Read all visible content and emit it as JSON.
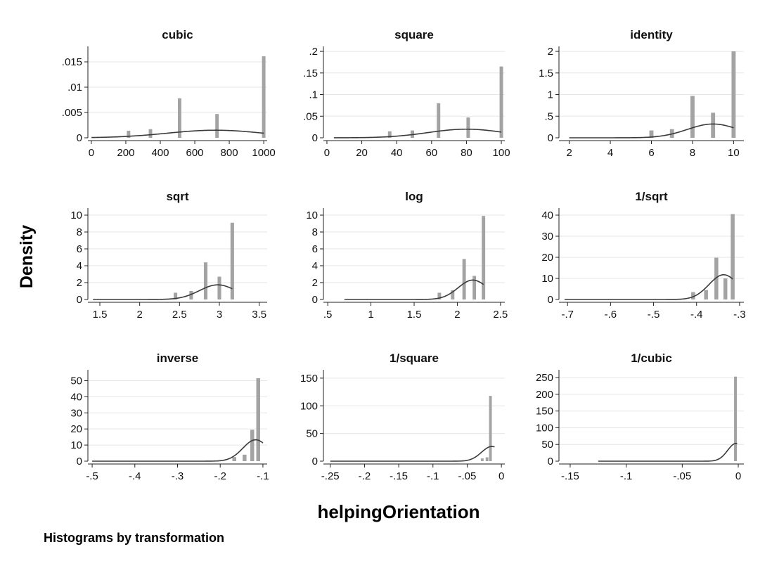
{
  "colors": {
    "bar": "#a3a3a3",
    "curve": "#3a3a3a",
    "grid": "#e6e6e6",
    "axis": "#222222"
  },
  "chart_data": {
    "type": "bar",
    "layout": "3x3 small multiples",
    "ylabel": "Density",
    "xlabel": "helpingOrientation",
    "note": "Histograms by transformation",
    "grid": true,
    "overlay": "normal density curve",
    "panels": [
      {
        "title": "cubic",
        "xlim": [
          -20,
          1020
        ],
        "ylim": [
          0,
          0.0175
        ],
        "xticks": [
          0,
          200,
          400,
          600,
          800,
          1000
        ],
        "xtick_labels": [
          "0",
          "200",
          "400",
          "600",
          "800",
          "1000"
        ],
        "yticks": [
          0,
          0.005,
          0.01,
          0.015
        ],
        "ytick_labels": [
          "0",
          ".005",
          ".01",
          ".015"
        ],
        "bar_width": 20,
        "bars": [
          {
            "x": 216,
            "y": 0.0014
          },
          {
            "x": 343,
            "y": 0.0017
          },
          {
            "x": 512,
            "y": 0.0078
          },
          {
            "x": 729,
            "y": 0.0047
          },
          {
            "x": 1000,
            "y": 0.0161
          }
        ],
        "curve": {
          "mean": 720,
          "sd": 280,
          "scale": 1.05,
          "range": [
            1,
            1000
          ]
        }
      },
      {
        "title": "square",
        "xlim": [
          -2,
          102
        ],
        "ylim": [
          0,
          0.205
        ],
        "xticks": [
          0,
          20,
          40,
          60,
          80,
          100
        ],
        "xtick_labels": [
          "0",
          "20",
          "40",
          "60",
          "80",
          "100"
        ],
        "yticks": [
          0,
          0.05,
          0.1,
          0.15,
          0.2
        ],
        "yticks_labels_note": "",
        "ytick_labels": [
          "0",
          ".05",
          ".1",
          ".15",
          ".2"
        ],
        "bar_width": 2,
        "bars": [
          {
            "x": 36,
            "y": 0.015
          },
          {
            "x": 49,
            "y": 0.017
          },
          {
            "x": 64,
            "y": 0.08
          },
          {
            "x": 81,
            "y": 0.047
          },
          {
            "x": 100,
            "y": 0.165
          }
        ],
        "curve": {
          "mean": 80,
          "sd": 22,
          "scale": 1.1,
          "range": [
            4,
            100
          ]
        }
      },
      {
        "title": "identity",
        "xlim": [
          1.5,
          10.5
        ],
        "ylim": [
          0,
          2.05
        ],
        "xticks": [
          2,
          4,
          6,
          8,
          10
        ],
        "xtick_labels": [
          "2",
          "4",
          "6",
          "8",
          "10"
        ],
        "yticks": [
          0,
          0.5,
          1,
          1.5,
          2
        ],
        "ytick_labels": [
          "0",
          ".5",
          "1",
          "1.5",
          "2"
        ],
        "bar_width": 0.2,
        "bars": [
          {
            "x": 6,
            "y": 0.17
          },
          {
            "x": 7,
            "y": 0.2
          },
          {
            "x": 8,
            "y": 0.97
          },
          {
            "x": 9,
            "y": 0.58
          },
          {
            "x": 10,
            "y": 2.0
          }
        ],
        "curve": {
          "mean": 9,
          "sd": 1.25,
          "scale": 1.0,
          "range": [
            2,
            10
          ]
        }
      },
      {
        "title": "sqrt",
        "xlim": [
          1.35,
          3.6
        ],
        "ylim": [
          0,
          10.5
        ],
        "xticks": [
          1.5,
          2,
          2.5,
          3,
          3.5
        ],
        "xtick_labels": [
          "1.5",
          "2",
          "2.5",
          "3",
          "3.5"
        ],
        "yticks": [
          0,
          2,
          4,
          6,
          8,
          10
        ],
        "ytick_labels": [
          "0",
          "2",
          "4",
          "6",
          "8",
          "10"
        ],
        "bar_width": 0.045,
        "bars": [
          {
            "x": 2.449,
            "y": 0.8
          },
          {
            "x": 2.646,
            "y": 1.0
          },
          {
            "x": 2.828,
            "y": 4.4
          },
          {
            "x": 3.0,
            "y": 2.7
          },
          {
            "x": 3.162,
            "y": 9.1
          }
        ],
        "curve": {
          "mean": 2.98,
          "sd": 0.23,
          "scale": 1.0,
          "range": [
            1.414,
            3.162
          ]
        }
      },
      {
        "title": "log",
        "xlim": [
          0.45,
          2.55
        ],
        "ylim": [
          0,
          10.5
        ],
        "xticks": [
          0.5,
          1,
          1.5,
          2,
          2.5
        ],
        "xtick_labels": [
          ".5",
          "1",
          "1.5",
          "2",
          "2.5"
        ],
        "yticks": [
          0,
          2,
          4,
          6,
          8,
          10
        ],
        "ytick_labels": [
          "0",
          "2",
          "4",
          "6",
          "8",
          "10"
        ],
        "bar_width": 0.04,
        "bars": [
          {
            "x": 1.792,
            "y": 0.8
          },
          {
            "x": 1.946,
            "y": 1.1
          },
          {
            "x": 2.079,
            "y": 4.8
          },
          {
            "x": 2.197,
            "y": 2.8
          },
          {
            "x": 2.303,
            "y": 9.9
          }
        ],
        "curve": {
          "mean": 2.18,
          "sd": 0.17,
          "scale": 0.98,
          "range": [
            0.693,
            2.303
          ]
        }
      },
      {
        "title": "1/sqrt",
        "xlim": [
          -0.72,
          -0.29
        ],
        "ylim": [
          0,
          42
        ],
        "xticks": [
          -0.7,
          -0.6,
          -0.5,
          -0.4,
          -0.3
        ],
        "xtick_labels": [
          "-.7",
          "-.6",
          "-.5",
          "-.4",
          "-.3"
        ],
        "yticks": [
          0,
          10,
          20,
          30,
          40
        ],
        "ytick_labels": [
          "0",
          "10",
          "20",
          "30",
          "40"
        ],
        "bar_width": 0.009,
        "bars": [
          {
            "x": -0.408,
            "y": 3.5
          },
          {
            "x": -0.378,
            "y": 4.5
          },
          {
            "x": -0.354,
            "y": 19.8
          },
          {
            "x": -0.333,
            "y": 10.0
          },
          {
            "x": -0.316,
            "y": 40.5
          }
        ],
        "curve": {
          "mean": -0.337,
          "sd": 0.034,
          "scale": 1.0,
          "range": [
            -0.707,
            -0.316
          ]
        }
      },
      {
        "title": "inverse",
        "xlim": [
          -0.51,
          -0.09
        ],
        "ylim": [
          0,
          55
        ],
        "xticks": [
          -0.5,
          -0.4,
          -0.3,
          -0.2,
          -0.1
        ],
        "xtick_labels": [
          "-.5",
          "-.4",
          "-.3",
          "-.2",
          "-.1"
        ],
        "yticks": [
          0,
          10,
          20,
          30,
          40,
          50
        ],
        "ytick_labels": [
          "0",
          "10",
          "20",
          "30",
          "40",
          "50"
        ],
        "bar_width": 0.009,
        "bars": [
          {
            "x": -0.167,
            "y": 2.5
          },
          {
            "x": -0.143,
            "y": 4.0
          },
          {
            "x": -0.125,
            "y": 19.5
          },
          {
            "x": -0.111,
            "y": 51.5
          }
        ],
        "curve": {
          "mean": -0.117,
          "sd": 0.03,
          "scale": 1.0,
          "range": [
            -0.5,
            -0.1
          ]
        }
      },
      {
        "title": "1/square",
        "xlim": [
          -0.26,
          0.005
        ],
        "ylim": [
          0,
          160
        ],
        "xticks": [
          -0.25,
          -0.2,
          -0.15,
          -0.1,
          -0.05,
          0
        ],
        "xtick_labels": [
          "-.25",
          "-.2",
          "-.15",
          "-.1",
          "-.05",
          "0"
        ],
        "yticks": [
          0,
          50,
          100,
          150
        ],
        "ytick_labels": [
          "0",
          "50",
          "100",
          "150"
        ],
        "bar_width": 0.004,
        "bars": [
          {
            "x": -0.028,
            "y": 5.0
          },
          {
            "x": -0.021,
            "y": 7.0
          },
          {
            "x": -0.016,
            "y": 118
          }
        ],
        "curve": {
          "mean": -0.014,
          "sd": 0.015,
          "scale": 1.0,
          "range": [
            -0.25,
            -0.01
          ]
        }
      },
      {
        "title": "1/cubic",
        "xlim": [
          -0.16,
          0.005
        ],
        "ylim": [
          0,
          265
        ],
        "xticks": [
          -0.15,
          -0.1,
          -0.05,
          0
        ],
        "xtick_labels": [
          "-.15",
          "-.1",
          "-.05",
          "0"
        ],
        "yticks": [
          0,
          50,
          100,
          150,
          200,
          250
        ],
        "ytick_labels": [
          "0",
          "50",
          "100",
          "150",
          "200",
          "250"
        ],
        "bar_width": 0.0025,
        "bars": [
          {
            "x": -0.0025,
            "y": 253
          }
        ],
        "curve": {
          "mean": -0.002,
          "sd": 0.0075,
          "scale": 1.0,
          "range": [
            -0.125,
            -0.001
          ]
        }
      }
    ]
  }
}
